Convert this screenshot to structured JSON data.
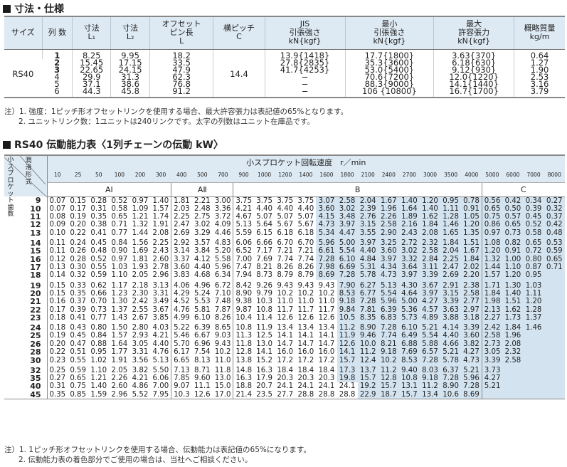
{
  "spec": {
    "title": "寸法・仕様",
    "headers": [
      "サイズ",
      "列 数",
      "寸法\nL₁",
      "寸法\nL₂",
      "オフセット\nピン長\nL",
      "横ピッチ\nC",
      "JIS\n引張強さ\nkN{kgf}",
      "最小\n引張強さ\nkN{kgf}",
      "最大\n許容張力\nkN{kgf}",
      "概略質量\nkg/m"
    ],
    "size": "RS40",
    "pitch": "14.4",
    "rows": [
      {
        "n": "1",
        "bold": true,
        "l1": "8.25",
        "l2": "9.95",
        "l": "18.2",
        "jis": "13.9{1418}",
        "min": "17.7{1800}",
        "max": "3.63{370}",
        "mass": "0.64"
      },
      {
        "n": "2",
        "bold": true,
        "l1": "15.45",
        "l2": "17.15",
        "l": "33.5",
        "jis": "27.8{2835}",
        "min": "35.3{3600}",
        "max": "6.18{630}",
        "mass": "1.27"
      },
      {
        "n": "3",
        "bold": true,
        "l1": "22.65",
        "l2": "24.15",
        "l": "47.9",
        "jis": "41.7{4253}",
        "min": "53.0{5400}",
        "max": "9.12{930}",
        "mass": "1.90"
      },
      {
        "n": "4",
        "bold": false,
        "l1": "29.9",
        "l2": "31.3",
        "l": "62.3",
        "jis": "−",
        "min": "70.6{7200}",
        "max": "12.0{1220}",
        "mass": "2.53"
      },
      {
        "n": "5",
        "bold": false,
        "l1": "37.1",
        "l2": "38.6",
        "l": "76.8",
        "jis": "−",
        "min": "88.3{9000}",
        "max": "14.1{1440}",
        "mass": "3.16"
      },
      {
        "n": "6",
        "bold": false,
        "l1": "44.3",
        "l2": "45.8",
        "l": "91.2",
        "jis": "−",
        "min": "106 {10800}",
        "max": "16.7{1700}",
        "mass": "3.79"
      }
    ],
    "notes": [
      "注）1. 強度：1ピッチ形オフセットリンクを使用する場合、最大許容張力は表記値の65%となります。",
      "2. ユニットリンク数：1ユニットは240リンクです。太字の列数はユニット在庫品です。"
    ]
  },
  "power": {
    "title": "RS40 伝動能力表〈1列チェーンの伝動 kW〉",
    "corner_teeth": "小スプロケット歯数",
    "corner_lub": "潤滑形式",
    "speed_caption": "小スプロケット回転速度　r／min",
    "rpm": [
      "10",
      "25",
      "50",
      "100",
      "200",
      "300",
      "400",
      "500",
      "700",
      "900",
      "1000",
      "1200",
      "1400",
      "1600",
      "1800",
      "2100",
      "2400",
      "2700",
      "3000",
      "3500",
      "4000",
      "5000",
      "6000",
      "7000",
      "8000"
    ],
    "lubrication": [
      {
        "label": "AⅠ",
        "span": 6
      },
      {
        "label": "AⅡ",
        "span": 3
      },
      {
        "label": "B",
        "span": 12
      },
      {
        "label": "C",
        "span": 4
      }
    ],
    "shade_color": "#d3e3ef",
    "rows": [
      {
        "teeth": "9",
        "shade_from": "1600",
        "values": [
          "0.07",
          "0.15",
          "0.28",
          "0.52",
          "0.97",
          "1.40",
          "1.81",
          "2.21",
          "3.00",
          "3.75",
          "3.75",
          "3.75",
          "3.75",
          "3.07",
          "2.58",
          "2.04",
          "1.67",
          "1.40",
          "1.20",
          "0.95",
          "0.78",
          "0.56",
          "0.42",
          "0.34",
          "0.27"
        ]
      },
      {
        "teeth": "10",
        "shade_from": "1600",
        "values": [
          "0.07",
          "0.17",
          "0.31",
          "0.58",
          "1.09",
          "1.57",
          "2.03",
          "2.48",
          "3.36",
          "4.21",
          "4.40",
          "4.40",
          "4.40",
          "3.60",
          "3.02",
          "2.39",
          "1.96",
          "1.64",
          "1.40",
          "1.11",
          "0.91",
          "0.65",
          "0.50",
          "0.39",
          "0.32"
        ]
      },
      {
        "teeth": "11",
        "shade_from": "1600",
        "values": [
          "0.08",
          "0.19",
          "0.35",
          "0.65",
          "1.21",
          "1.74",
          "2.25",
          "2.75",
          "3.72",
          "4.67",
          "5.07",
          "5.07",
          "5.07",
          "4.15",
          "3.48",
          "2.76",
          "2.26",
          "1.89",
          "1.62",
          "1.28",
          "1.05",
          "0.75",
          "0.57",
          "0.45",
          "0.37"
        ]
      },
      {
        "teeth": "12",
        "shade_from": "1600",
        "values": [
          "0.09",
          "0.20",
          "0.38",
          "0.71",
          "1.32",
          "1.91",
          "2.47",
          "3.02",
          "4.09",
          "5.13",
          "5.64",
          "5.67",
          "5.67",
          "4.73",
          "3.97",
          "3.15",
          "2.58",
          "2.16",
          "1.84",
          "1.46",
          "1.20",
          "0.86",
          "0.65",
          "0.52",
          "0.42"
        ]
      },
      {
        "teeth": "13",
        "shade_from": "1600",
        "values": [
          "0.10",
          "0.22",
          "0.41",
          "0.77",
          "1.44",
          "2.08",
          "2.69",
          "3.29",
          "4.46",
          "5.59",
          "6.15",
          "6.18",
          "6.18",
          "5.34",
          "4.47",
          "3.55",
          "2.90",
          "2.43",
          "2.08",
          "1.65",
          "1.35",
          "0.97",
          "0.73",
          "0.58",
          "0.48"
        ]
      },
      {
        "teeth": "14",
        "shade_from": "1600",
        "values": [
          "0.11",
          "0.24",
          "0.45",
          "0.84",
          "1.56",
          "2.25",
          "2.92",
          "3.57",
          "4.83",
          "6.06",
          "6.66",
          "6.70",
          "6.70",
          "5.96",
          "5.00",
          "3.97",
          "3.25",
          "2.72",
          "2.32",
          "1.84",
          "1.51",
          "1.08",
          "0.82",
          "0.65",
          "0.53"
        ]
      },
      {
        "teeth": "15",
        "shade_from": "1600",
        "values": [
          "0.11",
          "0.26",
          "0.48",
          "0.90",
          "1.69",
          "2.43",
          "3.14",
          "3.84",
          "5.20",
          "6.52",
          "7.17",
          "7.21",
          "7.21",
          "6.61",
          "5.54",
          "4.40",
          "3.60",
          "3.02",
          "2.58",
          "2.04",
          "1.67",
          "1.20",
          "0.91",
          "0.72",
          "0.59"
        ]
      },
      {
        "teeth": "16",
        "shade_from": "1600",
        "values": [
          "0.12",
          "0.28",
          "0.52",
          "0.97",
          "1.81",
          "2.60",
          "3.37",
          "4.12",
          "5.58",
          "7.00",
          "7.69",
          "7.74",
          "7.74",
          "7.28",
          "6.10",
          "4.84",
          "3.97",
          "3.32",
          "2.84",
          "2.25",
          "1.84",
          "1.32",
          "1.00",
          "0.80",
          "0.65"
        ]
      },
      {
        "teeth": "17",
        "shade_from": "1600",
        "values": [
          "0.13",
          "0.30",
          "0.55",
          "1.03",
          "1.93",
          "2.78",
          "3.60",
          "4.40",
          "5.96",
          "7.47",
          "8.21",
          "8.26",
          "8.26",
          "7.98",
          "6.69",
          "5.31",
          "4.34",
          "3.64",
          "3.11",
          "2.47",
          "2.02",
          "1.44",
          "1.10",
          "0.87",
          "0.71"
        ]
      },
      {
        "teeth": "18",
        "shade_from": "1600",
        "values": [
          "0.14",
          "0.32",
          "0.59",
          "1.10",
          "2.05",
          "2.96",
          "3.83",
          "4.68",
          "6.34",
          "7.94",
          "8.73",
          "8.79",
          "8.79",
          "8.69",
          "7.28",
          "5.78",
          "4.73",
          "3.97",
          "3.39",
          "2.69",
          "2.20",
          "1.57",
          "1.20",
          "0.95",
          ""
        ]
      },
      {
        "teeth": "19",
        "shade_from": "1800",
        "values": [
          "0.15",
          "0.33",
          "0.62",
          "1.17",
          "2.18",
          "3.13",
          "4.06",
          "4.96",
          "6.72",
          "8.42",
          "9.26",
          "9.43",
          "9.43",
          "9.43",
          "7.90",
          "6.27",
          "5.13",
          "4.30",
          "3.67",
          "2.91",
          "2.38",
          "1.71",
          "1.30",
          "1.03",
          ""
        ]
      },
      {
        "teeth": "20",
        "shade_from": "1800",
        "values": [
          "0.15",
          "0.35",
          "0.66",
          "1.23",
          "2.30",
          "3.31",
          "4.29",
          "5.24",
          "7.10",
          "8.90",
          "9.79",
          "10.2",
          "10.2",
          "10.2",
          "8.53",
          "6.77",
          "5.54",
          "4.64",
          "3.97",
          "3.15",
          "2.58",
          "1.84",
          "1.40",
          "1.11",
          ""
        ]
      },
      {
        "teeth": "21",
        "shade_from": "1800",
        "values": [
          "0.16",
          "0.37",
          "0.70",
          "1.30",
          "2.42",
          "3.49",
          "4.52",
          "5.53",
          "7.48",
          "9.38",
          "10.3",
          "11.0",
          "11.0",
          "11.0",
          "9.18",
          "7.28",
          "5.96",
          "5.00",
          "4.27",
          "3.39",
          "2.77",
          "1.98",
          "1.51",
          "1.20",
          ""
        ]
      },
      {
        "teeth": "22",
        "shade_from": "1800",
        "values": [
          "0.17",
          "0.39",
          "0.73",
          "1.37",
          "2.55",
          "3.67",
          "4.76",
          "5.81",
          "7.87",
          "9.87",
          "10.8",
          "11.7",
          "11.7",
          "11.7",
          "9.84",
          "7.81",
          "6.39",
          "5.36",
          "4.57",
          "3.63",
          "2.97",
          "2.13",
          "1.62",
          "1.28",
          ""
        ]
      },
      {
        "teeth": "23",
        "shade_from": "1800",
        "values": [
          "0.18",
          "0.41",
          "0.77",
          "1.43",
          "2.67",
          "3.85",
          "4.99",
          "6.10",
          "8.26",
          "10.4",
          "11.4",
          "12.6",
          "12.6",
          "12.6",
          "10.5",
          "8.35",
          "6.83",
          "5.73",
          "4.89",
          "3.88",
          "3.18",
          "2.27",
          "1.73",
          "1.37",
          ""
        ]
      },
      {
        "teeth": "24",
        "shade_from": "1800",
        "values": [
          "0.18",
          "0.43",
          "0.80",
          "1.50",
          "2.80",
          "4.03",
          "5.22",
          "6.39",
          "8.65",
          "10.8",
          "11.9",
          "13.4",
          "13.4",
          "13.4",
          "11.2",
          "8.90",
          "7.28",
          "6.10",
          "5.21",
          "4.14",
          "3.39",
          "2.42",
          "1.84",
          "1.46",
          ""
        ]
      },
      {
        "teeth": "25",
        "shade_from": "1800",
        "values": [
          "0.19",
          "0.45",
          "0.84",
          "1.57",
          "2.93",
          "4.21",
          "5.46",
          "6.67",
          "9.03",
          "11.3",
          "12.5",
          "14.1",
          "14.1",
          "14.1",
          "11.9",
          "9.46",
          "7.74",
          "6.49",
          "5.54",
          "4.40",
          "3.60",
          "2.58",
          "1.96",
          "",
          ""
        ]
      },
      {
        "teeth": "26",
        "shade_from": "1800",
        "values": [
          "0.20",
          "0.47",
          "0.88",
          "1.64",
          "3.05",
          "4.40",
          "5.70",
          "6.96",
          "9.43",
          "11.8",
          "13.0",
          "14.7",
          "14.7",
          "14.7",
          "12.6",
          "10.0",
          "8.21",
          "6.88",
          "5.88",
          "4.66",
          "3.82",
          "2.73",
          "2.08",
          "",
          ""
        ]
      },
      {
        "teeth": "28",
        "shade_from": "1800",
        "values": [
          "0.22",
          "0.51",
          "0.95",
          "1.77",
          "3.31",
          "4.76",
          "6.17",
          "7.54",
          "10.2",
          "12.8",
          "14.1",
          "16.0",
          "16.0",
          "16.0",
          "14.1",
          "11.2",
          "9.18",
          "7.69",
          "6.57",
          "5.21",
          "4.27",
          "3.05",
          "2.32",
          "",
          ""
        ]
      },
      {
        "teeth": "30",
        "shade_from": "1800",
        "values": [
          "0.23",
          "0.55",
          "1.02",
          "1.91",
          "3.56",
          "5.13",
          "6.65",
          "8.13",
          "11.0",
          "13.8",
          "15.2",
          "17.2",
          "17.2",
          "17.2",
          "15.7",
          "12.4",
          "10.2",
          "8.53",
          "7.28",
          "5.78",
          "4.73",
          "3.39",
          "2.58",
          "",
          ""
        ]
      },
      {
        "teeth": "32",
        "shade_from": "1800",
        "values": [
          "0.25",
          "0.59",
          "1.10",
          "2.05",
          "3.82",
          "5.50",
          "7.13",
          "8.71",
          "11.8",
          "14.8",
          "16.3",
          "18.4",
          "18.4",
          "18.4",
          "17.3",
          "13.7",
          "11.2",
          "9.40",
          "8.03",
          "6.37",
          "5.21",
          "3.73",
          "",
          "",
          ""
        ]
      },
      {
        "teeth": "35",
        "shade_from": "1800",
        "values": [
          "0.27",
          "0.65",
          "1.21",
          "2.26",
          "4.21",
          "6.06",
          "7.85",
          "9.60",
          "13.0",
          "16.3",
          "17.9",
          "20.3",
          "20.3",
          "20.3",
          "19.8",
          "15.7",
          "12.8",
          "10.8",
          "9.18",
          "7.28",
          "5.96",
          "4.27",
          "",
          "",
          ""
        ]
      },
      {
        "teeth": "40",
        "shade_from": "2100",
        "values": [
          "0.31",
          "0.75",
          "1.40",
          "2.60",
          "4.86",
          "7.00",
          "9.07",
          "11.1",
          "15.0",
          "18.8",
          "20.7",
          "24.1",
          "24.1",
          "24.1",
          "24.1",
          "19.2",
          "15.7",
          "13.1",
          "11.2",
          "8.90",
          "7.28",
          "5.21",
          "",
          "",
          ""
        ]
      },
      {
        "teeth": "45",
        "shade_from": "2100",
        "values": [
          "0.35",
          "0.85",
          "1.59",
          "2.96",
          "5.52",
          "7.95",
          "10.3",
          "12.6",
          "17.0",
          "21.4",
          "23.5",
          "27.7",
          "28.8",
          "28.8",
          "28.8",
          "22.9",
          "18.7",
          "15.7",
          "13.4",
          "10.6",
          "8.69",
          "",
          "",
          "",
          ""
        ]
      }
    ],
    "notes": [
      "注）1. 1ピッチ形オフセットリンクを使用する場合、伝動能力は表記値の65%になります。",
      "2. 伝動能力表の着色部分でご使用の場合は、当社へご相談ください。"
    ]
  }
}
